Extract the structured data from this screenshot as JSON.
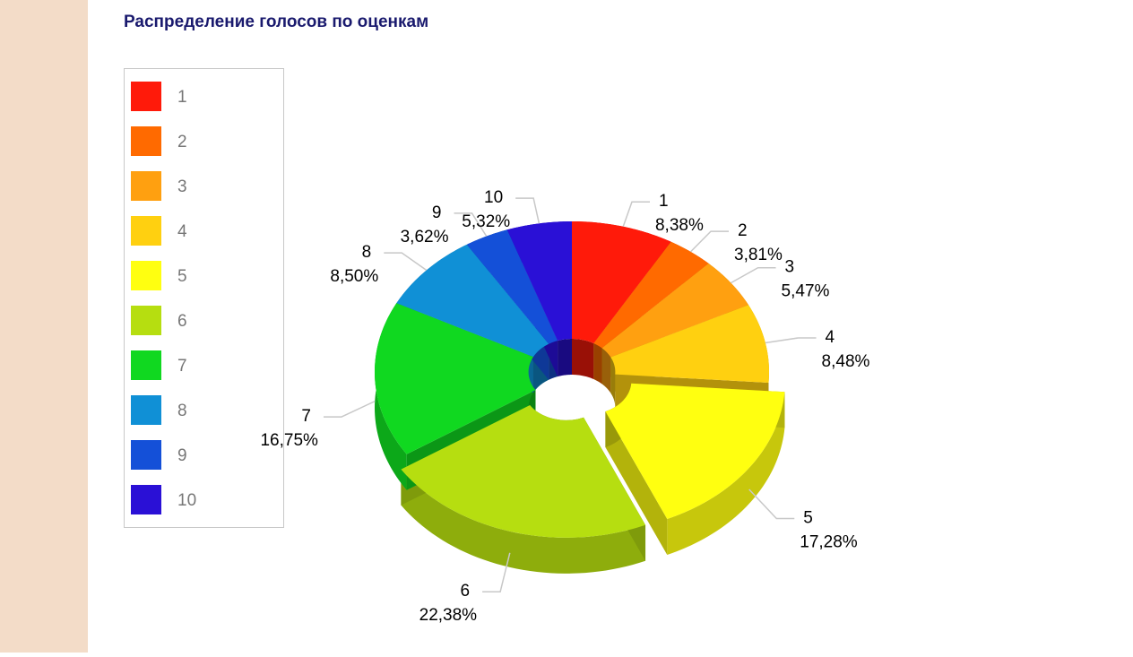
{
  "chart_data": {
    "type": "pie",
    "title": "Распределение голосов по оценкам",
    "categories": [
      "1",
      "2",
      "3",
      "4",
      "5",
      "6",
      "7",
      "8",
      "9",
      "10"
    ],
    "values": [
      8.38,
      3.81,
      5.47,
      8.48,
      17.28,
      22.38,
      16.75,
      8.5,
      3.62,
      5.32
    ],
    "value_labels": [
      "8,38%",
      "3,81%",
      "5,47%",
      "8,48%",
      "17,28%",
      "22,38%",
      "16,75%",
      "8,50%",
      "3,62%",
      "5,32%"
    ],
    "colors": [
      "#ff1a0a",
      "#ff6a00",
      "#ffa010",
      "#ffd010",
      "#ffff10",
      "#b6de10",
      "#10d820",
      "#1090d6",
      "#1450d8",
      "#2a10d6"
    ],
    "legend": "left"
  }
}
